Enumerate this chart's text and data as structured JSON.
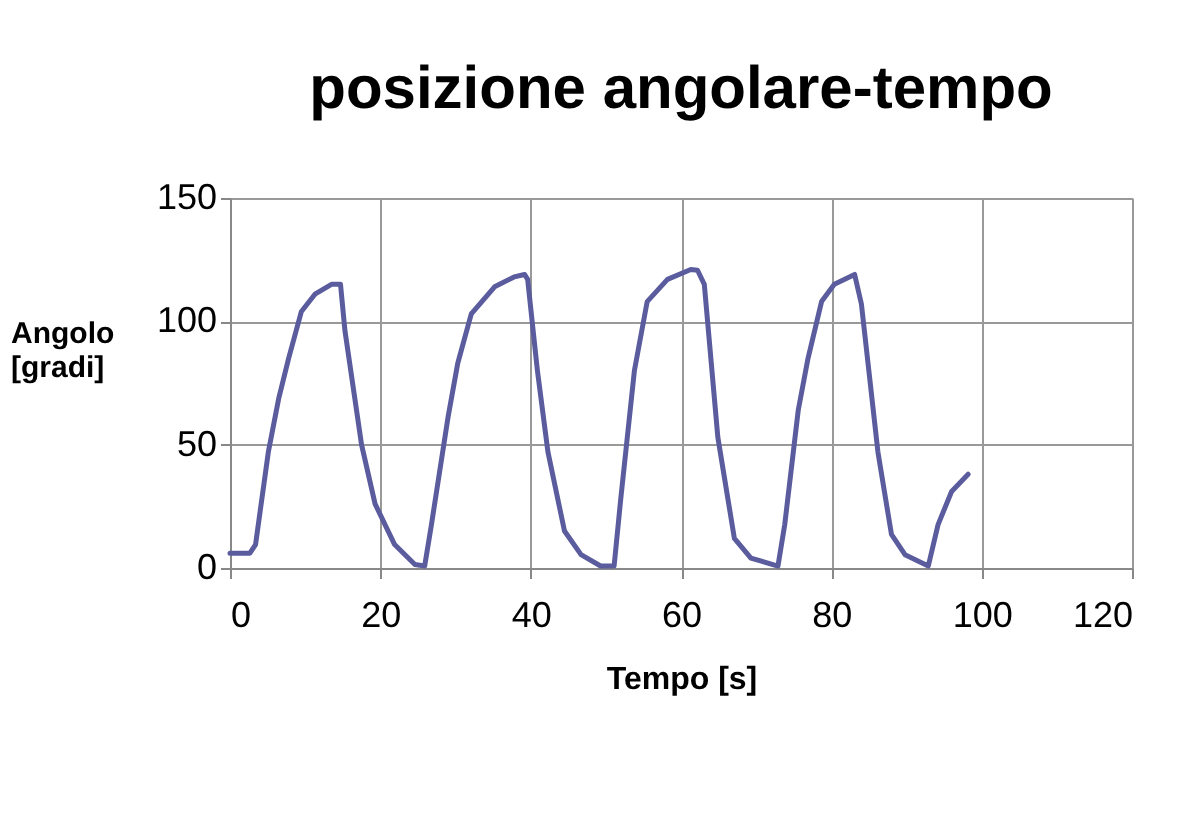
{
  "chart_data": {
    "type": "line",
    "title": "posizione angolare-tempo",
    "xlabel": "Tempo [s]",
    "ylabel": "Angolo [gradi]",
    "xlim": [
      0,
      120
    ],
    "xticks": [
      0,
      20,
      40,
      60,
      80,
      100,
      120
    ],
    "ylim": [
      0,
      150
    ],
    "yticks": [
      0,
      50,
      100,
      150
    ],
    "grid": true,
    "marker": "none",
    "line_style": "solid",
    "series": [
      {
        "color": "#5a5c9e",
        "x": [
          0,
          2.65,
          3.4,
          5.1,
          6.5,
          7.8,
          9.5,
          11.3,
          13.5,
          14.7,
          15.3,
          17.5,
          19.3,
          21.9,
          24.6,
          25.9,
          26.8,
          29,
          30.3,
          32.1,
          35.2,
          37.8,
          39.2,
          39.6,
          40.9,
          42.3,
          44.5,
          46.7,
          49.3,
          51.1,
          52,
          53.8,
          55.5,
          58.2,
          61.3,
          62.2,
          63.1,
          64.9,
          67.1,
          69.3,
          72.9,
          73.8,
          75.6,
          76.9,
          78.7,
          80.4,
          83.1,
          84,
          86.2,
          88,
          89.8,
          92.9,
          94.2,
          96,
          98.2
        ],
        "values": [
          6,
          6,
          9.5,
          47,
          69,
          85,
          104,
          111,
          115,
          115,
          96,
          50,
          26,
          9.5,
          1.4,
          0.8,
          17.6,
          61,
          83,
          103,
          114,
          118,
          119,
          117,
          80,
          47,
          15,
          5.4,
          0.8,
          0.8,
          28.5,
          80,
          108,
          117,
          121,
          120.7,
          115,
          53,
          12,
          4,
          0.8,
          17.6,
          64,
          85,
          108,
          115,
          119,
          107,
          47,
          13.6,
          5.4,
          0.8,
          17.6,
          31,
          38
        ]
      }
    ]
  }
}
